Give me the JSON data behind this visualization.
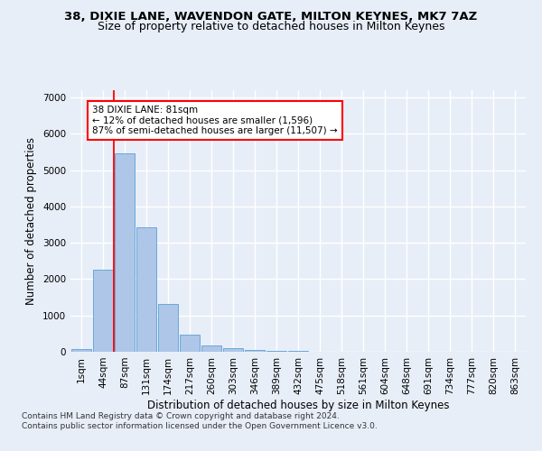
{
  "title_line1": "38, DIXIE LANE, WAVENDON GATE, MILTON KEYNES, MK7 7AZ",
  "title_line2": "Size of property relative to detached houses in Milton Keynes",
  "xlabel": "Distribution of detached houses by size in Milton Keynes",
  "ylabel": "Number of detached properties",
  "footnote": "Contains HM Land Registry data © Crown copyright and database right 2024.\nContains public sector information licensed under the Open Government Licence v3.0.",
  "bar_labels": [
    "1sqm",
    "44sqm",
    "87sqm",
    "131sqm",
    "174sqm",
    "217sqm",
    "260sqm",
    "303sqm",
    "346sqm",
    "389sqm",
    "432sqm",
    "475sqm",
    "518sqm",
    "561sqm",
    "604sqm",
    "648sqm",
    "691sqm",
    "734sqm",
    "777sqm",
    "820sqm",
    "863sqm"
  ],
  "bar_values": [
    80,
    2270,
    5470,
    3430,
    1310,
    470,
    165,
    90,
    55,
    35,
    15,
    8,
    4,
    2,
    1,
    0,
    0,
    0,
    0,
    0,
    0
  ],
  "bar_color": "#aec6e8",
  "bar_edge_color": "#5a9fd4",
  "vline_color": "red",
  "annotation_text": "38 DIXIE LANE: 81sqm\n← 12% of detached houses are smaller (1,596)\n87% of semi-detached houses are larger (11,507) →",
  "annotation_box_color": "white",
  "annotation_box_edge_color": "red",
  "ylim": [
    0,
    7200
  ],
  "yticks": [
    0,
    1000,
    2000,
    3000,
    4000,
    5000,
    6000,
    7000
  ],
  "bg_color": "#e8eef8",
  "axes_bg_color": "#e8eef8",
  "grid_color": "white",
  "title_fontsize": 9.5,
  "subtitle_fontsize": 9,
  "axis_label_fontsize": 8.5,
  "tick_fontsize": 7.5,
  "footnote_fontsize": 6.5
}
